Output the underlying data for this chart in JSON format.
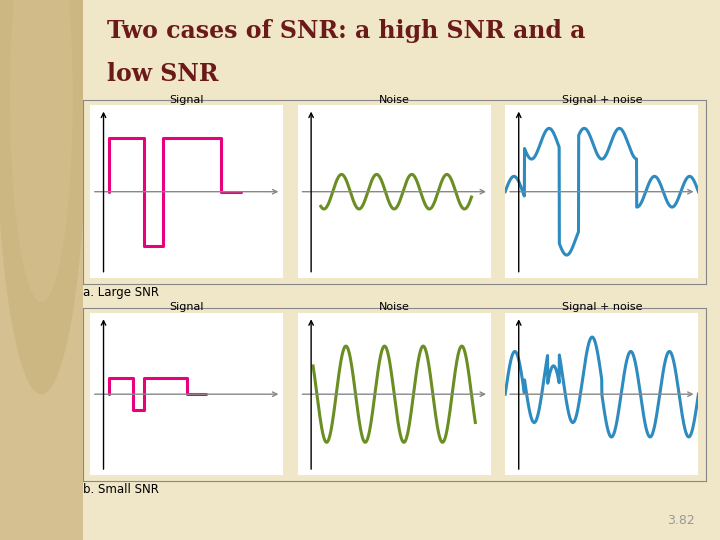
{
  "title_line1": "Two cases of SNR: a high SNR and a",
  "title_line2": "low SNR",
  "title_color": "#6B1A1A",
  "background_color": "#F0E6C8",
  "panel_background": "#FFFFFF",
  "label_a": "a. Large SNR",
  "label_b": "b. Small SNR",
  "signal_color": "#E8007D",
  "noise_color": "#6B8E23",
  "combined_color": "#2E8BBF",
  "axis_color_x": "#888888",
  "axis_color_y": "#000000",
  "page_number": "3.82",
  "col_labels": [
    "Signal",
    "Noise",
    "Signal + noise"
  ],
  "title_fontsize": 17,
  "label_fontsize": 8.5
}
